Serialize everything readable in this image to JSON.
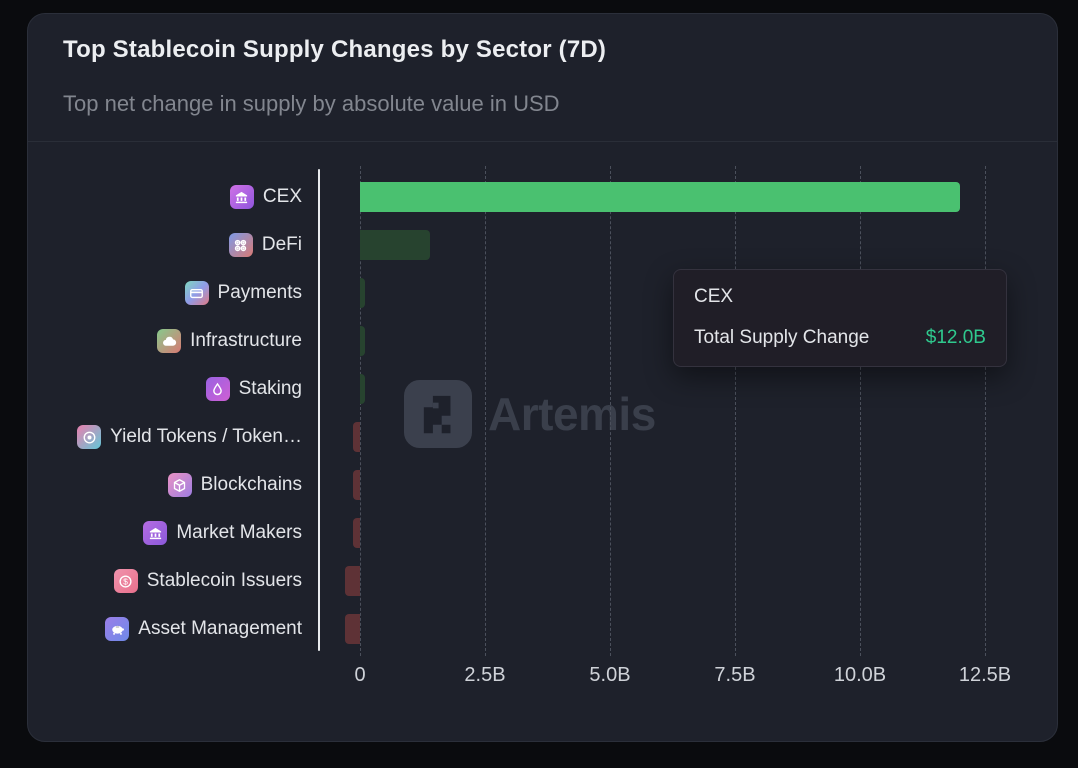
{
  "header": {
    "title": "Top Stablecoin Supply Changes by Sector (7D)",
    "subtitle": "Top net change in supply by absolute value in USD"
  },
  "watermark": {
    "text": "Artemis"
  },
  "tooltip": {
    "title": "CEX",
    "label": "Total Supply Change",
    "value": "$12.0B",
    "value_color": "#2fc98e"
  },
  "chart_data": {
    "type": "bar",
    "orientation": "horizontal",
    "title": "Top Stablecoin Supply Changes by Sector (7D)",
    "subtitle": "Top net change in supply by absolute value in USD",
    "unit": "USD billions",
    "xlim": [
      -0.85,
      13.3
    ],
    "grid": "vertical-dashed",
    "legend": "none",
    "highlighted_category": "CEX",
    "categories": [
      "CEX",
      "DeFi",
      "Payments",
      "Infrastructure",
      "Staking",
      "Yield Tokens / Token…",
      "Blockchains",
      "Market Makers",
      "Stablecoin Issuers",
      "Asset Management"
    ],
    "values": [
      12.0,
      1.4,
      0.1,
      0.1,
      0.1,
      -0.15,
      -0.15,
      -0.15,
      -0.3,
      -0.3
    ],
    "x_ticks": [
      {
        "label": "0",
        "value": 0
      },
      {
        "label": "2.5B",
        "value": 2.5
      },
      {
        "label": "5.0B",
        "value": 5
      },
      {
        "label": "7.5B",
        "value": 7.5
      },
      {
        "label": "10.0B",
        "value": 10
      },
      {
        "label": "12.5B",
        "value": 12.5
      }
    ],
    "bar_colors": {
      "positive_highlight": "#4ac170",
      "positive_dim": "#27432f",
      "negative_dim": "#5e3236"
    },
    "rows": [
      {
        "label": "CEX",
        "value": 12.0,
        "icon": "bank",
        "grad": [
          "#cf72e6",
          "#8f55dd"
        ]
      },
      {
        "label": "DeFi",
        "value": 1.4,
        "icon": "grid-circles",
        "grad": [
          "#7d9ae8",
          "#d97a74"
        ]
      },
      {
        "label": "Payments",
        "value": 0.1,
        "icon": "credit-card",
        "grad": [
          "#7fd8c0",
          "#8f9ce8",
          "#e07a86"
        ]
      },
      {
        "label": "Infrastructure",
        "value": 0.1,
        "icon": "cloud",
        "grad": [
          "#86ca8c",
          "#d97a74"
        ]
      },
      {
        "label": "Staking",
        "value": 0.1,
        "icon": "droplet",
        "grad": [
          "#9a62e2",
          "#cf5fd4"
        ]
      },
      {
        "label": "Yield Tokens / Token…",
        "value": -0.15,
        "icon": "target",
        "grad": [
          "#ea7fae",
          "#62c8d8"
        ]
      },
      {
        "label": "Blockchains",
        "value": -0.15,
        "icon": "cube",
        "grad": [
          "#ea93c3",
          "#9e7de2"
        ]
      },
      {
        "label": "Market Makers",
        "value": -0.15,
        "icon": "bank",
        "grad": [
          "#b56ce2",
          "#8b59da"
        ]
      },
      {
        "label": "Stablecoin Issuers",
        "value": -0.3,
        "icon": "dollar-coin",
        "grad": [
          "#f093ad",
          "#e8708c"
        ]
      },
      {
        "label": "Asset Management",
        "value": -0.3,
        "icon": "piggy-bank",
        "grad": [
          "#9b7ee8",
          "#6e8ae8"
        ]
      }
    ]
  }
}
